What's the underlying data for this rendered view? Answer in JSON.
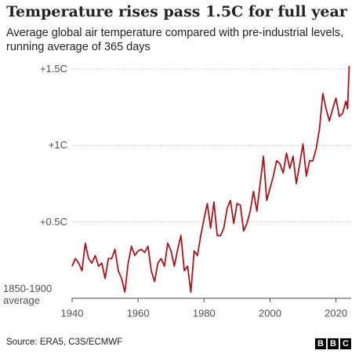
{
  "chart_data": {
    "type": "line",
    "title": "Temperature rises pass 1.5C for full year",
    "subtitle": "Average global air temperature compared with pre-industrial levels, running average of 365 days",
    "source": "Source: ERA5, C3S/ECMWF",
    "logo": [
      "B",
      "B",
      "C"
    ],
    "x": [
      1940,
      1941,
      1942,
      1943,
      1944,
      1945,
      1946,
      1947,
      1948,
      1949,
      1950,
      1951,
      1952,
      1953,
      1954,
      1955,
      1956,
      1957,
      1958,
      1959,
      1960,
      1961,
      1962,
      1963,
      1964,
      1965,
      1966,
      1967,
      1968,
      1969,
      1970,
      1971,
      1972,
      1973,
      1974,
      1975,
      1976,
      1977,
      1978,
      1979,
      1980,
      1981,
      1982,
      1983,
      1984,
      1985,
      1986,
      1987,
      1988,
      1989,
      1990,
      1991,
      1992,
      1993,
      1994,
      1995,
      1996,
      1997,
      1998,
      1999,
      2000,
      2001,
      2002,
      2003,
      2004,
      2005,
      2006,
      2007,
      2008,
      2009,
      2010,
      2011,
      2012,
      2013,
      2014,
      2015,
      2016,
      2017,
      2018,
      2019,
      2020,
      2021,
      2022,
      2023,
      2023.5,
      2024
    ],
    "series": [
      {
        "color": "#a8141c",
        "values": [
          0.21,
          0.26,
          0.23,
          0.18,
          0.36,
          0.26,
          0.23,
          0.28,
          0.21,
          0.23,
          0.13,
          0.26,
          0.26,
          0.32,
          0.18,
          0.13,
          0.04,
          0.23,
          0.34,
          0.28,
          0.31,
          0.32,
          0.3,
          0.34,
          0.18,
          0.11,
          0.23,
          0.26,
          0.21,
          0.36,
          0.31,
          0.21,
          0.32,
          0.41,
          0.18,
          0.21,
          0.04,
          0.31,
          0.28,
          0.41,
          0.52,
          0.62,
          0.46,
          0.63,
          0.41,
          0.41,
          0.46,
          0.59,
          0.64,
          0.49,
          0.62,
          0.61,
          0.44,
          0.49,
          0.57,
          0.7,
          0.57,
          0.75,
          0.93,
          0.64,
          0.72,
          0.8,
          0.9,
          0.88,
          0.82,
          0.95,
          0.85,
          0.93,
          0.75,
          0.88,
          1.01,
          0.8,
          0.9,
          0.9,
          0.98,
          1.11,
          1.34,
          1.24,
          1.16,
          1.24,
          1.31,
          1.19,
          1.21,
          1.29,
          1.24,
          1.52
        ]
      }
    ],
    "xlim": [
      1940,
      2024.6
    ],
    "ylim": [
      0,
      1.56
    ],
    "xticks": [
      1940,
      1960,
      1980,
      2000,
      2020
    ],
    "yticks": [
      {
        "value": 0,
        "label": "1850-1900 average"
      },
      {
        "value": 0.5,
        "label": "+0.5C"
      },
      {
        "value": 1,
        "label": "+1C"
      },
      {
        "value": 1.5,
        "label": "+1.5C"
      }
    ],
    "grid": true
  }
}
